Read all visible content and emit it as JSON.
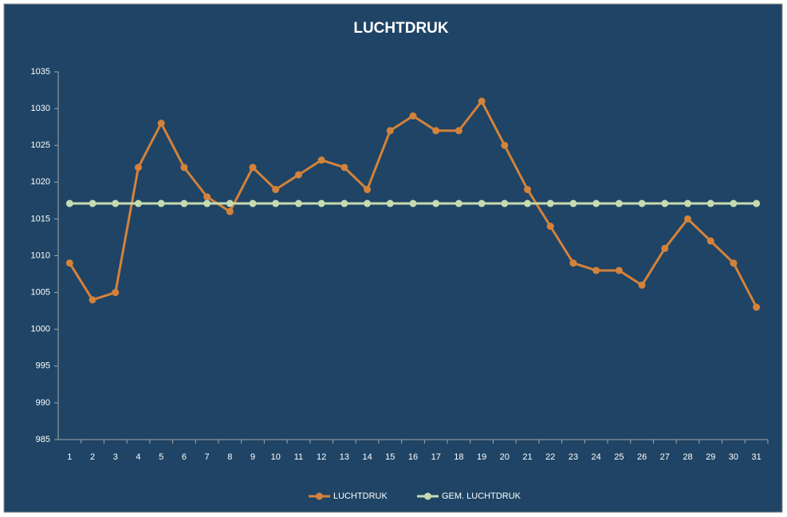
{
  "chart_data": {
    "type": "line",
    "title": "LUCHTDRUK",
    "categories": [
      1,
      2,
      3,
      4,
      5,
      6,
      7,
      8,
      9,
      10,
      11,
      12,
      13,
      14,
      15,
      16,
      17,
      18,
      19,
      20,
      21,
      22,
      23,
      24,
      25,
      26,
      27,
      28,
      29,
      30,
      31
    ],
    "series": [
      {
        "name": "LUCHTDRUK",
        "color": "#d4823a",
        "values": [
          1009,
          1004,
          1005,
          1022,
          1028,
          1022,
          1018,
          1016,
          1022,
          1019,
          1021,
          1023,
          1022,
          1019,
          1027,
          1029,
          1027,
          1027,
          1031,
          1025,
          1019,
          1014,
          1009,
          1008,
          1008,
          1006,
          1011,
          1015,
          1012,
          1009,
          1003
        ]
      },
      {
        "name": "GEM. LUCHTDRUK",
        "color": "#c5dbb0",
        "values": [
          1017.1,
          1017.1,
          1017.1,
          1017.1,
          1017.1,
          1017.1,
          1017.1,
          1017.1,
          1017.1,
          1017.1,
          1017.1,
          1017.1,
          1017.1,
          1017.1,
          1017.1,
          1017.1,
          1017.1,
          1017.1,
          1017.1,
          1017.1,
          1017.1,
          1017.1,
          1017.1,
          1017.1,
          1017.1,
          1017.1,
          1017.1,
          1017.1,
          1017.1,
          1017.1,
          1017.1
        ]
      }
    ],
    "ylim": [
      985,
      1035
    ],
    "yticks": [
      985,
      990,
      995,
      1000,
      1005,
      1010,
      1015,
      1020,
      1025,
      1030,
      1035
    ],
    "grid": false,
    "legend": "bottom"
  }
}
